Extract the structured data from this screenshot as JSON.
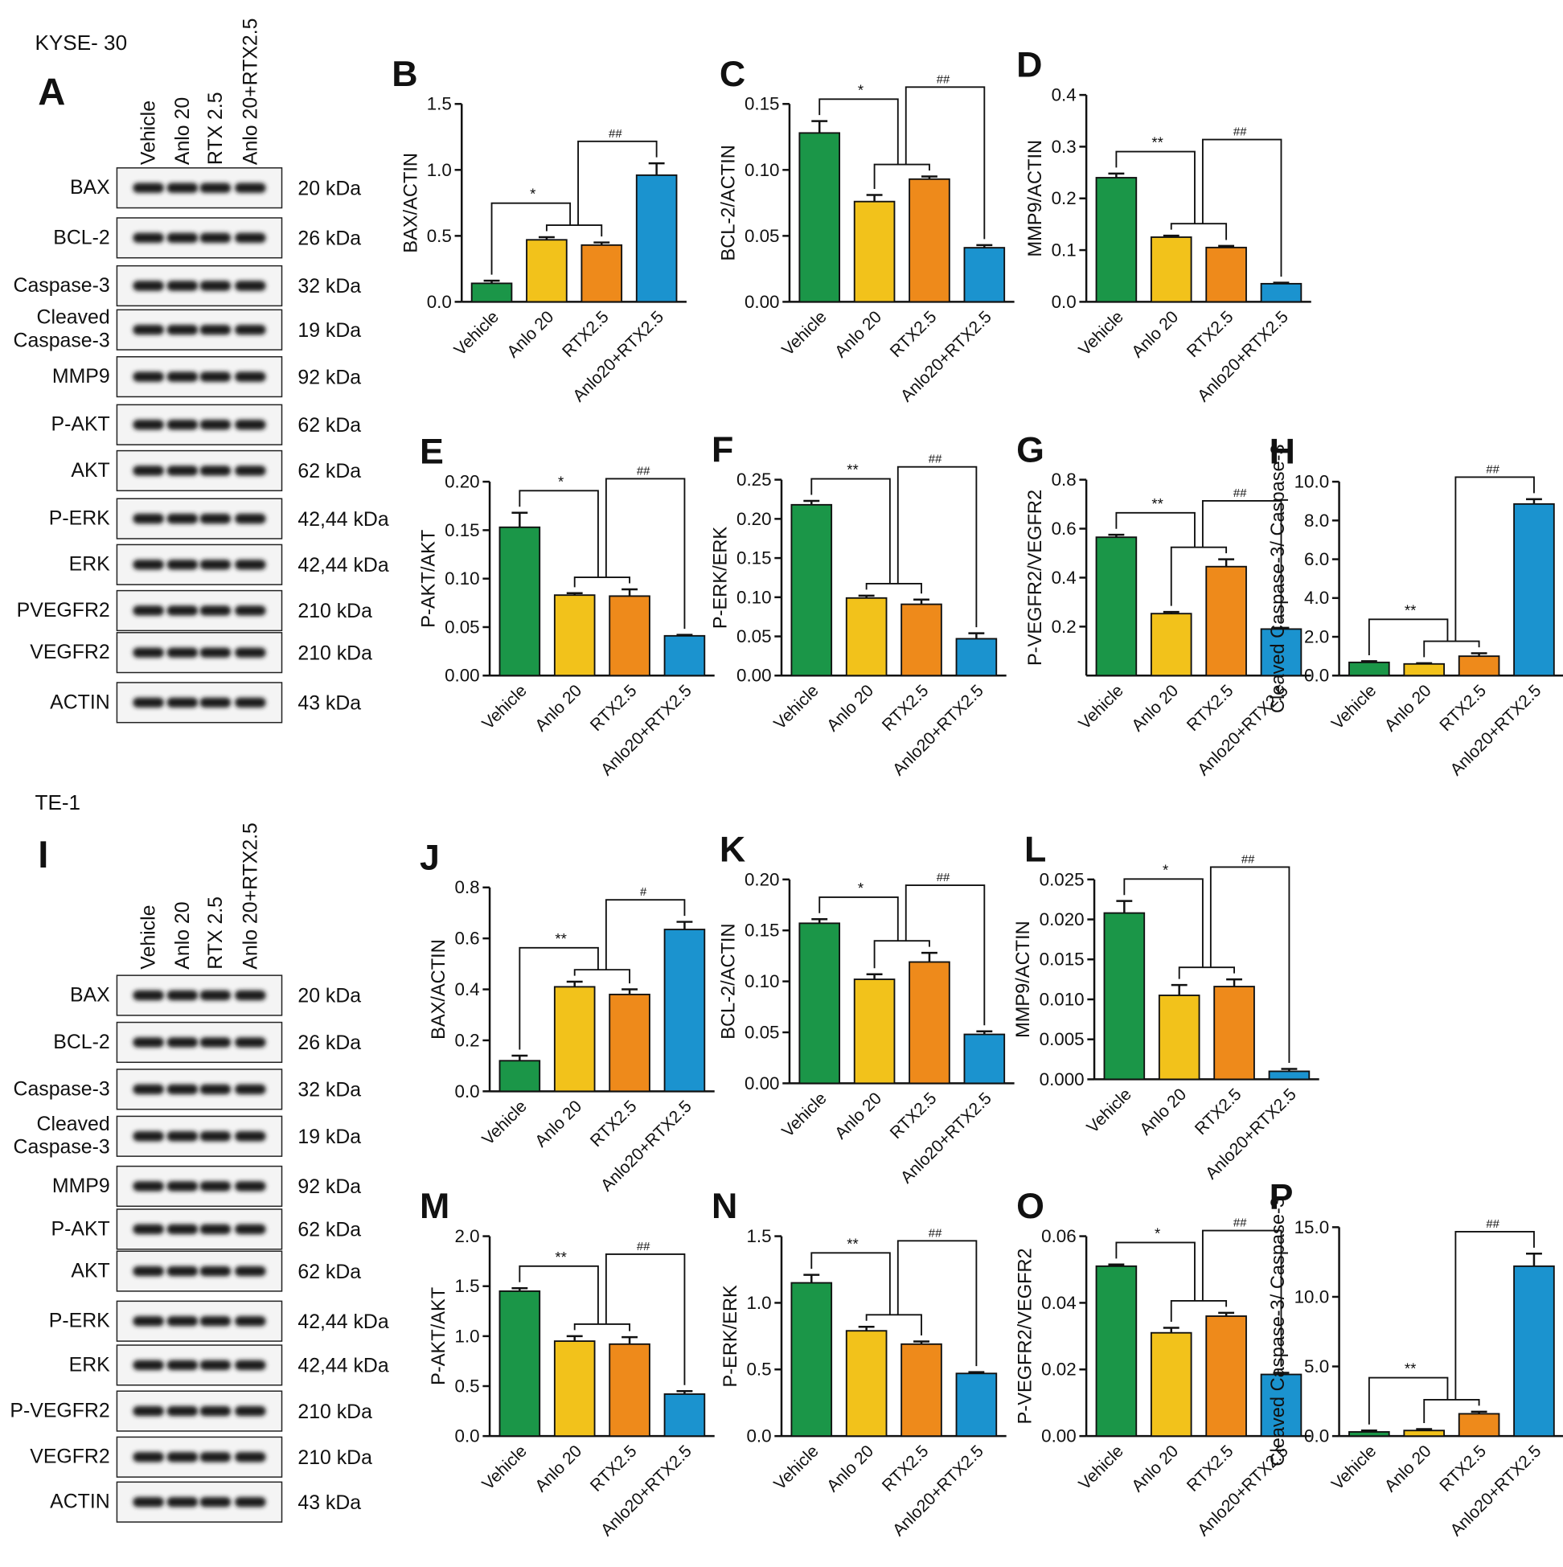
{
  "blots": [
    {
      "cell_line": "KYSE- 30",
      "panel": "A",
      "lanes": [
        "Vehicle",
        "Anlo 20",
        "RTX 2.5",
        "Anlo 20+RTX2.5"
      ],
      "rows": [
        {
          "protein": "BAX",
          "size": "20 kDa"
        },
        {
          "protein": "BCL-2",
          "size": "26 kDa"
        },
        {
          "protein": "Caspase-3",
          "size": "32 kDa"
        },
        {
          "protein": "Cleaved Caspase-3",
          "size": "19 kDa"
        },
        {
          "protein": "MMP9",
          "size": "92 kDa"
        },
        {
          "protein": "P-AKT",
          "size": "62 kDa"
        },
        {
          "protein": "AKT",
          "size": "62 kDa"
        },
        {
          "protein": "P-ERK",
          "size": "42,44 kDa"
        },
        {
          "protein": "ERK",
          "size": "42,44 kDa"
        },
        {
          "protein": "PVEGFR2",
          "size": "210 kDa"
        },
        {
          "protein": "VEGFR2",
          "size": "210 kDa"
        },
        {
          "protein": "ACTIN",
          "size": "43 kDa"
        }
      ]
    },
    {
      "cell_line": "TE-1",
      "panel": "I",
      "lanes": [
        "Vehicle",
        "Anlo 20",
        "RTX 2.5",
        "Anlo 20+RTX2.5"
      ],
      "rows": [
        {
          "protein": "BAX",
          "size": "20 kDa"
        },
        {
          "protein": "BCL-2",
          "size": "26 kDa"
        },
        {
          "protein": "Caspase-3",
          "size": "32 kDa"
        },
        {
          "protein": "Cleaved Caspase-3",
          "size": "19 kDa"
        },
        {
          "protein": "MMP9",
          "size": "92 kDa"
        },
        {
          "protein": "P-AKT",
          "size": "62 kDa"
        },
        {
          "protein": "AKT",
          "size": "62 kDa"
        },
        {
          "protein": "P-ERK",
          "size": "42,44 kDa"
        },
        {
          "protein": "ERK",
          "size": "42,44 kDa"
        },
        {
          "protein": "P-VEGFR2",
          "size": "210 kDa"
        },
        {
          "protein": "VEGFR2",
          "size": "210 kDa"
        },
        {
          "protein": "ACTIN",
          "size": "43 kDa"
        }
      ]
    }
  ],
  "chart_data": [
    {
      "type": "bar",
      "panel": "B",
      "ylabel": "BAX/ACTIN",
      "categories": [
        "Vehicle",
        "Anlo 20",
        "RTX2.5",
        "Anlo20+RTX2.5"
      ],
      "values": [
        0.14,
        0.47,
        0.43,
        0.96
      ],
      "errors": [
        0.02,
        0.02,
        0.02,
        0.09
      ],
      "colors": [
        "#1b9648",
        "#f2c21b",
        "#ee8a1b",
        "#1b93cf"
      ],
      "ylim": [
        0,
        1.5
      ],
      "yticks": [
        {
          "value": 0,
          "label": "0.0"
        },
        0.5,
        {
          "value": 1,
          "label": "1.0"
        },
        1.5
      ],
      "annotations": [
        "*",
        "##"
      ]
    },
    {
      "type": "bar",
      "panel": "C",
      "ylabel": "BCL-2/ACTIN",
      "categories": [
        "Vehicle",
        "Anlo 20",
        "RTX2.5",
        "Anlo20+RTX2.5"
      ],
      "values": [
        0.128,
        0.076,
        0.093,
        0.041
      ],
      "errors": [
        0.009,
        0.005,
        0.002,
        0.002
      ],
      "colors": [
        "#1b9648",
        "#f2c21b",
        "#ee8a1b",
        "#1b93cf"
      ],
      "ylim": [
        0,
        0.15
      ],
      "yticks": [
        {
          "value": 0,
          "label": "0.00"
        },
        0.05,
        {
          "value": 0.1,
          "label": "0.10"
        },
        0.15
      ],
      "annotations": [
        "*",
        "##"
      ]
    },
    {
      "type": "bar",
      "panel": "D",
      "ylabel": "MMP9/ACTIN",
      "categories": [
        "Vehicle",
        "Anlo 20",
        "RTX2.5",
        "Anlo20+RTX2.5"
      ],
      "values": [
        0.24,
        0.125,
        0.105,
        0.035
      ],
      "errors": [
        0.008,
        0.003,
        0.003,
        0.002
      ],
      "colors": [
        "#1b9648",
        "#f2c21b",
        "#ee8a1b",
        "#1b93cf"
      ],
      "ylim": [
        0,
        0.4
      ],
      "yticks": [
        {
          "value": 0,
          "label": "0.0"
        },
        0.1,
        0.2,
        0.3,
        0.4
      ],
      "annotations": [
        "**",
        "##"
      ]
    },
    {
      "type": "bar",
      "panel": "E",
      "ylabel": "P-AKT/AKT",
      "categories": [
        "Vehicle",
        "Anlo 20",
        "RTX2.5",
        "Anlo20+RTX2.5"
      ],
      "values": [
        0.153,
        0.083,
        0.082,
        0.041
      ],
      "errors": [
        0.015,
        0.002,
        0.007,
        0.001
      ],
      "colors": [
        "#1b9648",
        "#f2c21b",
        "#ee8a1b",
        "#1b93cf"
      ],
      "ylim": [
        0,
        0.2
      ],
      "yticks": [
        {
          "value": 0,
          "label": "0.00"
        },
        0.05,
        {
          "value": 0.1,
          "label": "0.10"
        },
        0.15,
        {
          "value": 0.2,
          "label": "0.20"
        }
      ],
      "annotations": [
        "*",
        "##"
      ]
    },
    {
      "type": "bar",
      "panel": "F",
      "ylabel": "P-ERK/ERK",
      "categories": [
        "Vehicle",
        "Anlo 20",
        "RTX2.5",
        "Anlo20+RTX2.5"
      ],
      "values": [
        0.218,
        0.099,
        0.091,
        0.047
      ],
      "errors": [
        0.005,
        0.003,
        0.006,
        0.007
      ],
      "colors": [
        "#1b9648",
        "#f2c21b",
        "#ee8a1b",
        "#1b93cf"
      ],
      "ylim": [
        0,
        0.25
      ],
      "yticks": [
        {
          "value": 0,
          "label": "0.00"
        },
        0.05,
        {
          "value": 0.1,
          "label": "0.10"
        },
        0.15,
        {
          "value": 0.2,
          "label": "0.20"
        },
        0.25
      ],
      "annotations": [
        "**",
        "##"
      ]
    },
    {
      "type": "bar",
      "panel": "G",
      "ylabel": "P-VEGFR2/VEGFR2",
      "categories": [
        "Vehicle",
        "Anlo 20",
        "RTX2.5",
        "Anlo20+RTX2.5"
      ],
      "values": [
        0.565,
        0.253,
        0.445,
        0.19
      ],
      "errors": [
        0.01,
        0.007,
        0.03,
        0.005
      ],
      "colors": [
        "#1b9648",
        "#f2c21b",
        "#ee8a1b",
        "#1b93cf"
      ],
      "ylim": [
        0,
        0.8
      ],
      "yticks": [
        0.2,
        0.4,
        0.6,
        0.8
      ],
      "annotations": [
        "**",
        "##"
      ]
    },
    {
      "type": "bar",
      "panel": "H",
      "ylabel": "Cleaved Caspase-3/ Caspase-3",
      "categories": [
        "Vehicle",
        "Anlo 20",
        "RTX2.5",
        "Anlo20+RTX2.5"
      ],
      "values": [
        0.68,
        0.6,
        1.0,
        8.85
      ],
      "errors": [
        0.06,
        0.04,
        0.15,
        0.25
      ],
      "colors": [
        "#1b9648",
        "#f2c21b",
        "#ee8a1b",
        "#1b93cf"
      ],
      "ylim": [
        0,
        10
      ],
      "yticks": [
        {
          "value": 0,
          "label": "0.0"
        },
        {
          "value": 2,
          "label": "2.0"
        },
        {
          "value": 4,
          "label": "4.0"
        },
        {
          "value": 6,
          "label": "6.0"
        },
        {
          "value": 8,
          "label": "8.0"
        },
        {
          "value": 10,
          "label": "10.0"
        }
      ],
      "annotations": [
        "**",
        "##"
      ]
    },
    {
      "type": "bar",
      "panel": "J",
      "ylabel": "BAX/ACTIN",
      "categories": [
        "Vehicle",
        "Anlo 20",
        "RTX2.5",
        "Anlo20+RTX2.5"
      ],
      "values": [
        0.12,
        0.41,
        0.38,
        0.635
      ],
      "errors": [
        0.02,
        0.02,
        0.02,
        0.03
      ],
      "colors": [
        "#1b9648",
        "#f2c21b",
        "#ee8a1b",
        "#1b93cf"
      ],
      "ylim": [
        0,
        0.8
      ],
      "yticks": [
        {
          "value": 0,
          "label": "0.0"
        },
        0.2,
        0.4,
        0.6,
        0.8
      ],
      "annotations": [
        "**",
        "#"
      ]
    },
    {
      "type": "bar",
      "panel": "K",
      "ylabel": "BCL-2/ACTIN",
      "categories": [
        "Vehicle",
        "Anlo 20",
        "RTX2.5",
        "Anlo20+RTX2.5"
      ],
      "values": [
        0.157,
        0.102,
        0.119,
        0.048
      ],
      "errors": [
        0.004,
        0.005,
        0.009,
        0.003
      ],
      "colors": [
        "#1b9648",
        "#f2c21b",
        "#ee8a1b",
        "#1b93cf"
      ],
      "ylim": [
        0,
        0.2
      ],
      "yticks": [
        {
          "value": 0,
          "label": "0.00"
        },
        0.05,
        {
          "value": 0.1,
          "label": "0.10"
        },
        0.15,
        {
          "value": 0.2,
          "label": "0.20"
        }
      ],
      "annotations": [
        "*",
        "##"
      ]
    },
    {
      "type": "bar",
      "panel": "L",
      "ylabel": "MMP9/ACTIN",
      "categories": [
        "Vehicle",
        "Anlo 20",
        "RTX2.5",
        "Anlo20+RTX2.5"
      ],
      "values": [
        0.0208,
        0.0105,
        0.0116,
        0.001
      ],
      "errors": [
        0.0015,
        0.0013,
        0.0009,
        0.0003
      ],
      "colors": [
        "#1b9648",
        "#f2c21b",
        "#ee8a1b",
        "#1b93cf"
      ],
      "ylim": [
        0,
        0.025
      ],
      "yticks": [
        {
          "value": 0,
          "label": "0.000"
        },
        0.005,
        {
          "value": 0.01,
          "label": "0.010"
        },
        0.015,
        {
          "value": 0.02,
          "label": "0.020"
        },
        0.025
      ],
      "annotations": [
        "*",
        "##"
      ]
    },
    {
      "type": "bar",
      "panel": "M",
      "ylabel": "P-AKT/AKT",
      "categories": [
        "Vehicle",
        "Anlo 20",
        "RTX2.5",
        "Anlo20+RTX2.5"
      ],
      "values": [
        1.45,
        0.95,
        0.92,
        0.42
      ],
      "errors": [
        0.03,
        0.05,
        0.07,
        0.03
      ],
      "colors": [
        "#1b9648",
        "#f2c21b",
        "#ee8a1b",
        "#1b93cf"
      ],
      "ylim": [
        0,
        2
      ],
      "yticks": [
        {
          "value": 0,
          "label": "0.0"
        },
        0.5,
        {
          "value": 1,
          "label": "1.0"
        },
        1.5,
        {
          "value": 2,
          "label": "2.0"
        }
      ],
      "annotations": [
        "**",
        "##"
      ]
    },
    {
      "type": "bar",
      "panel": "N",
      "ylabel": "P-ERK/ERK",
      "categories": [
        "Vehicle",
        "Anlo 20",
        "RTX2.5",
        "Anlo20+RTX2.5"
      ],
      "values": [
        1.15,
        0.79,
        0.69,
        0.47
      ],
      "errors": [
        0.06,
        0.03,
        0.02,
        0.01
      ],
      "colors": [
        "#1b9648",
        "#f2c21b",
        "#ee8a1b",
        "#1b93cf"
      ],
      "ylim": [
        0,
        1.5
      ],
      "yticks": [
        {
          "value": 0,
          "label": "0.0"
        },
        0.5,
        {
          "value": 1,
          "label": "1.0"
        },
        1.5
      ],
      "annotations": [
        "**",
        "##"
      ]
    },
    {
      "type": "bar",
      "panel": "O",
      "ylabel": "P-VEGFR2/VEGFR2",
      "categories": [
        "Vehicle",
        "Anlo 20",
        "RTX2.5",
        "Anlo20+RTX2.5"
      ],
      "values": [
        0.051,
        0.031,
        0.036,
        0.0185
      ],
      "errors": [
        0.0005,
        0.0015,
        0.001,
        0.0005
      ],
      "colors": [
        "#1b9648",
        "#f2c21b",
        "#ee8a1b",
        "#1b93cf"
      ],
      "ylim": [
        0,
        0.06
      ],
      "yticks": [
        {
          "value": 0,
          "label": "0.00"
        },
        0.02,
        0.04,
        0.06
      ],
      "annotations": [
        "*",
        "##"
      ]
    },
    {
      "type": "bar",
      "panel": "P",
      "ylabel": "Cleaved Caspase-3/ Caspase-3",
      "categories": [
        "Vehicle",
        "Anlo 20",
        "RTX2.5",
        "Anlo20+RTX2.5"
      ],
      "values": [
        0.3,
        0.4,
        1.6,
        12.2
      ],
      "errors": [
        0.1,
        0.1,
        0.15,
        0.9
      ],
      "colors": [
        "#1b9648",
        "#f2c21b",
        "#ee8a1b",
        "#1b93cf"
      ],
      "ylim": [
        0,
        15
      ],
      "yticks": [
        {
          "value": 0,
          "label": "0.0"
        },
        {
          "value": 5,
          "label": "5.0"
        },
        {
          "value": 10,
          "label": "10.0"
        },
        {
          "value": 15,
          "label": "15.0"
        }
      ],
      "annotations": [
        "**",
        "##"
      ]
    }
  ]
}
